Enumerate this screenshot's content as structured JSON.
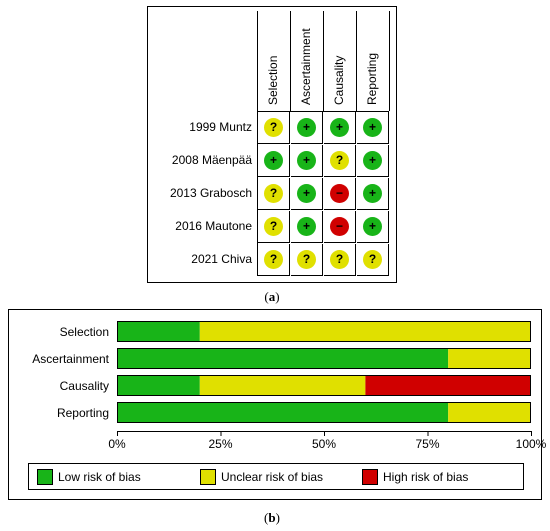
{
  "panel_a": {
    "caption_letter": "a",
    "columns": [
      "Selection",
      "Ascertainment",
      "Causality",
      "Reporting"
    ],
    "rows": [
      {
        "study": "1999 Muntz",
        "judgements": [
          "unclear",
          "low",
          "low",
          "low"
        ]
      },
      {
        "study": "2008 Mäenpää",
        "judgements": [
          "low",
          "low",
          "unclear",
          "low"
        ]
      },
      {
        "study": "2013 Grabosch",
        "judgements": [
          "unclear",
          "low",
          "high",
          "low"
        ]
      },
      {
        "study": "2016 Mautone",
        "judgements": [
          "unclear",
          "low",
          "high",
          "low"
        ]
      },
      {
        "study": "2021 Chiva",
        "judgements": [
          "unclear",
          "unclear",
          "unclear",
          "unclear"
        ]
      }
    ],
    "symbols": {
      "low": "+",
      "unclear": "?",
      "high": "−"
    }
  },
  "panel_b": {
    "caption_letter": "b",
    "legend": {
      "low": "Low risk of bias",
      "unclear": "Unclear risk of bias",
      "high": "High risk of bias"
    }
  },
  "colors": {
    "low": "#18b418",
    "unclear": "#e0e000",
    "high": "#d00000"
  },
  "chart_data": {
    "type": "bar",
    "orientation": "horizontal",
    "stacked": true,
    "categories": [
      "Selection",
      "Ascertainment",
      "Causality",
      "Reporting"
    ],
    "series": [
      {
        "name": "Low risk of bias",
        "values": [
          20,
          80,
          20,
          80
        ]
      },
      {
        "name": "Unclear risk of bias",
        "values": [
          80,
          20,
          40,
          20
        ]
      },
      {
        "name": "High risk of bias",
        "values": [
          0,
          0,
          40,
          0
        ]
      }
    ],
    "xlim": [
      0,
      100
    ],
    "xticks": [
      "0%",
      "25%",
      "50%",
      "75%",
      "100%"
    ],
    "legend_position": "bottom"
  }
}
